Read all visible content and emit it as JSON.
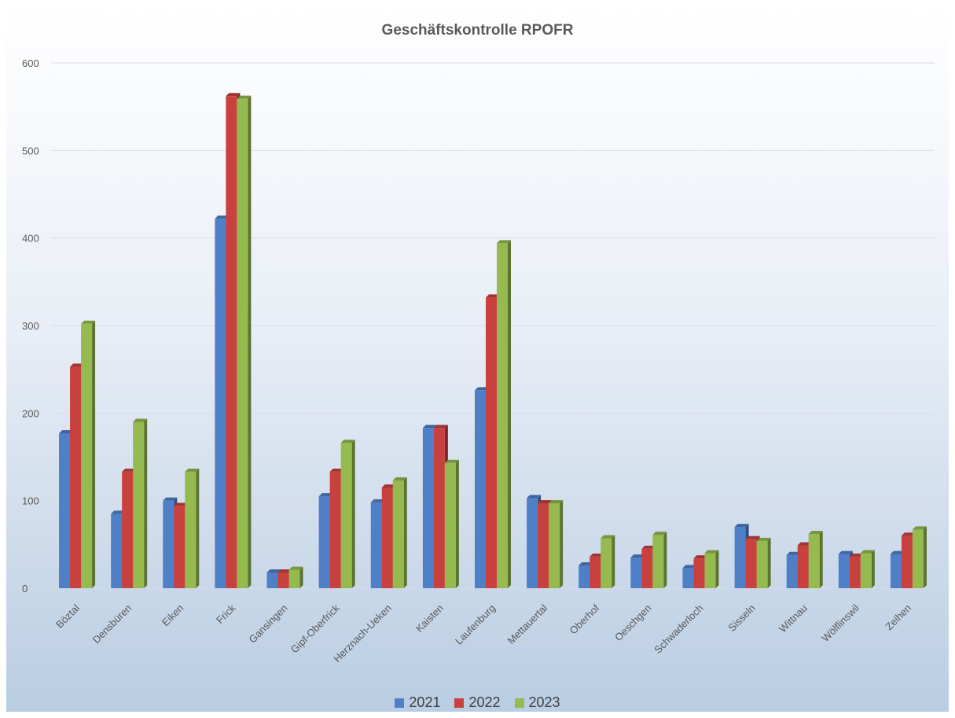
{
  "chart_data": {
    "type": "bar",
    "title": "Geschäftskontrolle RPOFR",
    "xlabel": "",
    "ylabel": "",
    "ylim": [
      0,
      600
    ],
    "yticks": [
      0,
      100,
      200,
      300,
      400,
      500,
      600
    ],
    "grid": true,
    "legend_position": "bottom",
    "categories": [
      "Böztal",
      "Densbüren",
      "Eiken",
      "Frick",
      "Gansingen",
      "Gipf-Oberfrick",
      "Herznach-Ueken",
      "Kaisten",
      "Laufenburg",
      "Mettauertal",
      "Oberhof",
      "Oeschgen",
      "Schwaderloch",
      "Sisseln",
      "Wittnau",
      "Wölflinswil",
      "Zeihen"
    ],
    "series": [
      {
        "name": "2021",
        "color": "#4f7fc7",
        "values": [
          177,
          85,
          100,
          422,
          18,
          105,
          98,
          183,
          226,
          103,
          26,
          35,
          23,
          70,
          38,
          39,
          39
        ]
      },
      {
        "name": "2022",
        "color": "#c9413f",
        "values": [
          253,
          133,
          94,
          562,
          18,
          133,
          115,
          183,
          332,
          97,
          36,
          45,
          34,
          56,
          49,
          36,
          60
        ]
      },
      {
        "name": "2023",
        "color": "#95ba4f",
        "values": [
          302,
          190,
          133,
          559,
          21,
          166,
          123,
          143,
          394,
          97,
          57,
          61,
          40,
          54,
          62,
          40,
          67
        ]
      }
    ]
  }
}
